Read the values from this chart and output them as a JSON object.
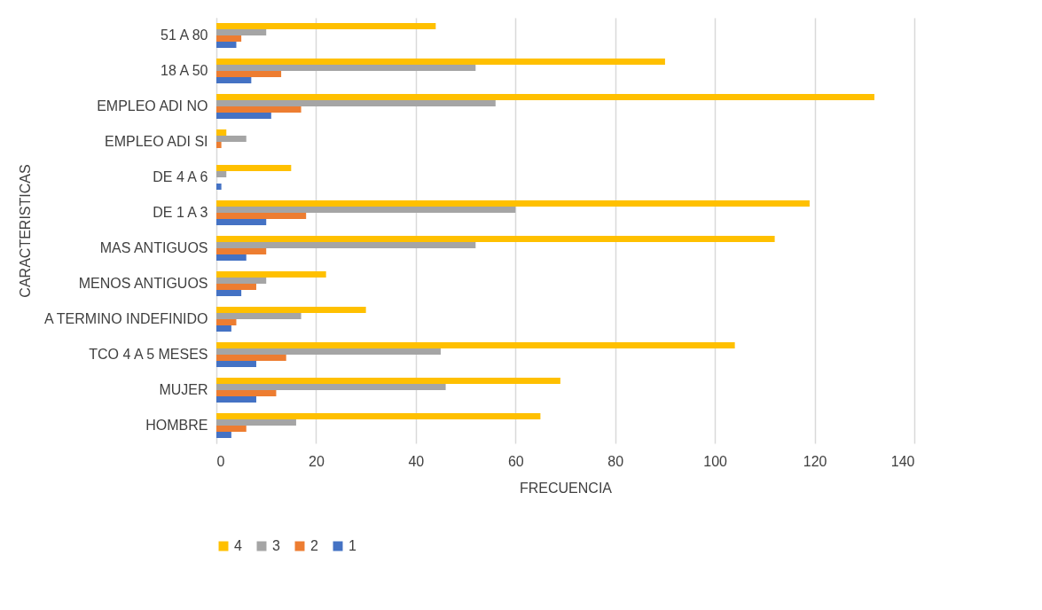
{
  "chart_data": {
    "type": "bar",
    "orientation": "horizontal",
    "xlabel": "FRECUENCIA",
    "ylabel": "CARACTERISTICAS",
    "categories": [
      "51 A 80",
      "18 A 50",
      "EMPLEO ADI NO",
      "EMPLEO ADI SI",
      "DE 4 A 6",
      "DE  1 A 3",
      "MAS ANTIGUOS",
      "MENOS ANTIGUOS",
      "A TERMINO INDEFINIDO",
      "TCO 4 A 5 MESES",
      "MUJER",
      "HOMBRE"
    ],
    "series": [
      {
        "name": "4",
        "color": "#ffc000",
        "values": [
          44,
          90,
          132,
          2,
          15,
          119,
          112,
          22,
          30,
          104,
          69,
          65
        ]
      },
      {
        "name": "3",
        "color": "#a5a5a5",
        "values": [
          10,
          52,
          56,
          6,
          2,
          60,
          52,
          10,
          17,
          45,
          46,
          16
        ]
      },
      {
        "name": "2",
        "color": "#ed7d31",
        "values": [
          5,
          13,
          17,
          1,
          0,
          18,
          10,
          8,
          4,
          14,
          12,
          6
        ]
      },
      {
        "name": "1",
        "color": "#4472c4",
        "values": [
          4,
          7,
          11,
          0,
          1,
          10,
          6,
          5,
          3,
          8,
          8,
          3
        ]
      }
    ],
    "xlim": [
      0,
      140
    ],
    "xticks": [
      0,
      20,
      40,
      60,
      80,
      100,
      120,
      140
    ],
    "grid": "x",
    "legend": "bottom"
  }
}
